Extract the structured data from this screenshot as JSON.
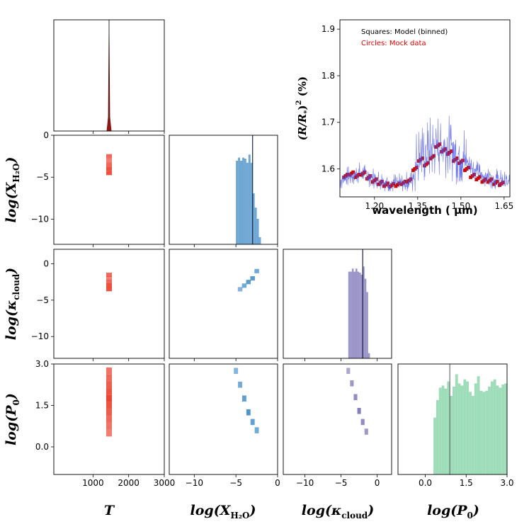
{
  "chart_data": [
    {
      "type": "corner",
      "parameters": [
        "T",
        "log(X_H2O)",
        "log(kappa_cloud)",
        "log(P0)"
      ],
      "colors": {
        "T": "#e8321f",
        "X": "#3d8ac4",
        "K": "#7a71b5",
        "P": "#7fd1a3"
      },
      "axis_ranges": {
        "T": [
          -100,
          3000
        ],
        "X": [
          -13,
          0
        ],
        "K": [
          -13,
          2
        ],
        "P": [
          -1,
          3
        ]
      },
      "true_values": {
        "T": 1450,
        "X": -3.0,
        "K": -2.0,
        "P": 0.9
      },
      "x_tick_labels": {
        "T": [
          "1000",
          "2000",
          "3000"
        ],
        "X": [
          "−10",
          "−5",
          "0"
        ],
        "K": [
          "−10",
          "−5",
          "0"
        ],
        "P": [
          "0.0",
          "1.5",
          "3.0"
        ]
      },
      "y_tick_labels": {
        "X": [
          "0",
          "−5",
          "−10"
        ],
        "K": [
          "0",
          "−5",
          "−10"
        ],
        "P": [
          "3.0",
          "1.5",
          "0.0"
        ]
      },
      "axis_labels": {
        "T": "T",
        "X_base": "log(X",
        "X_sub": "H₂O",
        "X_close": ")",
        "K_base": "log(κ",
        "K_sub": "cloud",
        "K_close": ")",
        "P_base": "log(P",
        "P_sub": "0",
        "P_close": ")"
      },
      "hist_T": {
        "center": 1450,
        "note": "extremely narrow peak"
      },
      "hist_X": {
        "bins": [
          -5.0,
          -4.75,
          -4.5,
          -4.25,
          -4.0,
          -3.75,
          -3.5,
          -3.25,
          -3.0,
          -2.75,
          -2.5,
          -2.25
        ],
        "values": [
          0.82,
          0.85,
          0.82,
          0.85,
          0.84,
          0.8,
          0.88,
          0.8,
          0.5,
          0.36,
          0.25,
          0.07
        ]
      },
      "hist_K": {
        "bins": [
          -4.0,
          -3.75,
          -3.5,
          -3.25,
          -3.0,
          -2.75,
          -2.5,
          -2.25,
          -2.0,
          -1.75,
          -1.5,
          -1.25
        ],
        "values": [
          0.85,
          0.85,
          0.88,
          0.85,
          0.88,
          0.85,
          0.84,
          0.82,
          0.9,
          0.78,
          0.65,
          0.05
        ]
      },
      "hist_P": {
        "bins": [
          0.3,
          0.4,
          0.5,
          0.6,
          0.7,
          0.8,
          0.9,
          1.0,
          1.1,
          1.2,
          1.3,
          1.4,
          1.5,
          1.6,
          1.7,
          1.8,
          1.9,
          2.0,
          2.1,
          2.2,
          2.3,
          2.4,
          2.5,
          2.6,
          2.7,
          2.8,
          2.9
        ],
        "values": [
          0.55,
          0.72,
          0.84,
          0.86,
          0.83,
          0.9,
          0.76,
          0.85,
          0.97,
          0.88,
          0.86,
          0.92,
          0.9,
          0.8,
          0.76,
          0.88,
          0.95,
          0.81,
          0.8,
          0.81,
          0.85,
          0.9,
          0.92,
          0.86,
          0.84,
          0.87,
          0.88
        ]
      },
      "scatter_T_X": {
        "x": 1450,
        "y": [
          -3.0,
          -3.5,
          -4.0,
          -4.5,
          -2.5
        ]
      },
      "scatter_T_K": {
        "x": 1450,
        "y": [
          -2.0,
          -2.5,
          -3.0,
          -3.5,
          -1.5
        ]
      },
      "scatter_T_P": {
        "x": 1450,
        "y": [
          0.5,
          0.75,
          1.0,
          1.25,
          1.5,
          1.75,
          2.0,
          2.25,
          2.5,
          2.75
        ]
      },
      "scatter_X_K": {
        "x": [
          -4.5,
          -4.0,
          -3.5,
          -3.0,
          -2.5
        ],
        "y": [
          -3.5,
          -3.0,
          -2.5,
          -2.0,
          -1.0
        ]
      },
      "scatter_X_P": {
        "x": [
          -5.0,
          -4.5,
          -4.0,
          -3.5,
          -3.0,
          -2.5
        ],
        "y": [
          2.75,
          2.25,
          1.75,
          1.25,
          0.9,
          0.6
        ]
      },
      "scatter_K_P": {
        "x": [
          -4.0,
          -3.5,
          -3.0,
          -2.5,
          -2.0,
          -1.5
        ],
        "y": [
          2.75,
          2.3,
          1.8,
          1.3,
          0.9,
          0.55
        ]
      }
    },
    {
      "type": "line",
      "title": "",
      "xlabel": "wavelength ( μm)",
      "ylabel": "(R/R_*)^2 (%)",
      "ylabel_parts": {
        "base": "(R/R",
        "sub": "*",
        "close": ")",
        "sup": "2",
        "unit": " (%)"
      },
      "xlim": [
        1.08,
        1.67
      ],
      "ylim": [
        1.54,
        1.92
      ],
      "x_ticks": [
        1.2,
        1.35,
        1.5,
        1.65
      ],
      "x_tick_labels": [
        "1.20",
        "1.35",
        "1.50",
        "1.65"
      ],
      "y_ticks": [
        1.6,
        1.7,
        1.8,
        1.9
      ],
      "y_tick_labels": [
        "1.6",
        "1.7",
        "1.8",
        "1.9"
      ],
      "legend": [
        {
          "text": "Squares: Model (binned)",
          "color": "#000000"
        },
        {
          "text": "Circles: Mock data",
          "color": "#e00000"
        }
      ],
      "series": [
        {
          "name": "model",
          "color": "#4a55e8",
          "envelope": {
            "x": [
              1.08,
              1.15,
              1.2,
              1.25,
              1.3,
              1.33,
              1.35,
              1.38,
              1.4,
              1.42,
              1.45,
              1.48,
              1.5,
              1.53,
              1.56,
              1.6,
              1.63,
              1.65
            ],
            "y": [
              1.575,
              1.59,
              1.578,
              1.568,
              1.565,
              1.575,
              1.62,
              1.63,
              1.64,
              1.645,
              1.645,
              1.63,
              1.625,
              1.61,
              1.59,
              1.58,
              1.575,
              1.57
            ]
          },
          "note": "high-resolution spectrum drawn as dense thin line"
        },
        {
          "name": "binned",
          "color": "#e00000",
          "x": [
            1.1,
            1.12,
            1.14,
            1.16,
            1.18,
            1.2,
            1.22,
            1.24,
            1.26,
            1.28,
            1.3,
            1.32,
            1.34,
            1.36,
            1.38,
            1.4,
            1.42,
            1.44,
            1.46,
            1.48,
            1.5,
            1.52,
            1.54,
            1.56,
            1.58,
            1.6,
            1.62,
            1.64
          ],
          "y": [
            1.585,
            1.59,
            1.585,
            1.59,
            1.582,
            1.575,
            1.57,
            1.566,
            1.565,
            1.566,
            1.57,
            1.575,
            1.6,
            1.62,
            1.61,
            1.625,
            1.65,
            1.64,
            1.635,
            1.62,
            1.615,
            1.6,
            1.585,
            1.58,
            1.575,
            1.575,
            1.57,
            1.568
          ]
        }
      ]
    }
  ]
}
